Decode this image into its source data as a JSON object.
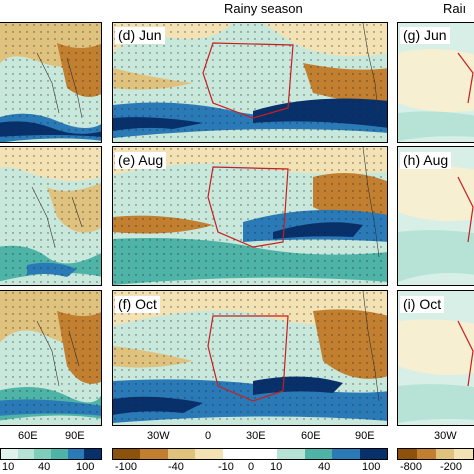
{
  "headers": {
    "middle": "Rainy season",
    "right": "Raiı"
  },
  "panels": {
    "left_top": "",
    "left_mid": "",
    "left_bot": "",
    "d": "(d) Jun",
    "e": "(e) Aug",
    "f": "(f) Oct",
    "g": "(g) Jun",
    "h": "(h) Aug",
    "i": "(i) Oct"
  },
  "lon_labels": {
    "left": [
      "60E",
      "90E"
    ],
    "middle": [
      "30W",
      "0",
      "30E",
      "60E",
      "90E"
    ],
    "right": [
      "30W"
    ]
  },
  "colorbars": {
    "left": {
      "ticks": [
        "10",
        "40",
        "100"
      ]
    },
    "middle": {
      "ticks": [
        "-100",
        "-40",
        "-10",
        "0",
        "10",
        "40",
        "100"
      ]
    },
    "right": {
      "ticks": [
        "-800",
        "-200"
      ]
    }
  },
  "palette": {
    "brown_dark": "#8c510a",
    "brown": "#c17f2f",
    "tan": "#dfc27d",
    "tan_light": "#f2e2b4",
    "white": "#ffffff",
    "mint": "#b6e3d6",
    "teal": "#4fb4a8",
    "blue": "#2a7ab8",
    "navy": "#08306b"
  }
}
